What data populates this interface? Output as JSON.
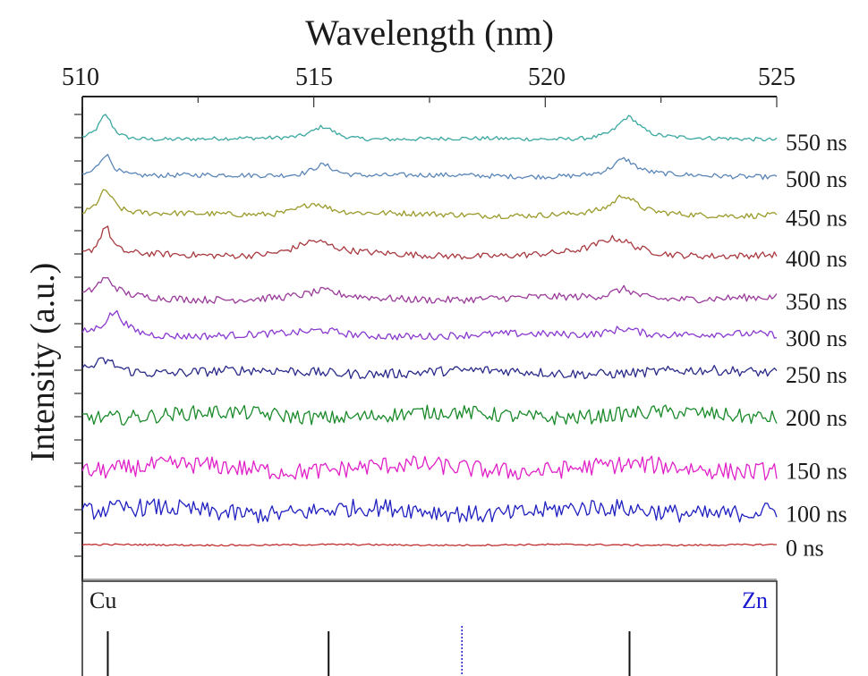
{
  "chart_data": {
    "type": "line",
    "title": "",
    "xlabel": "Wavelength (nm)",
    "ylabel": "Intensity (a.u.)",
    "xlim": [
      510,
      525
    ],
    "x_ticks": [
      "510",
      "515",
      "520",
      "525"
    ],
    "legend": "none (series labels at right end of each trace)",
    "grid": false,
    "stacked_offset": true,
    "series": [
      {
        "name": "550 ns",
        "color": "#3aa8a0",
        "base": 9.95,
        "noise": 0.05,
        "peaks": [
          [
            510.5,
            0.6,
            0.18
          ],
          [
            515.2,
            0.32,
            0.3
          ],
          [
            521.8,
            0.55,
            0.3
          ]
        ]
      },
      {
        "name": "500 ns",
        "color": "#5b86b8",
        "base": 9.05,
        "noise": 0.06,
        "peaks": [
          [
            510.5,
            0.55,
            0.18
          ],
          [
            515.2,
            0.3,
            0.3
          ],
          [
            521.7,
            0.4,
            0.3
          ]
        ]
      },
      {
        "name": "450 ns",
        "color": "#9a9a2a",
        "base": 8.1,
        "noise": 0.07,
        "peaks": [
          [
            510.5,
            0.6,
            0.2
          ],
          [
            515.0,
            0.3,
            0.4
          ],
          [
            521.7,
            0.45,
            0.3
          ]
        ]
      },
      {
        "name": "400 ns",
        "color": "#a83a40",
        "base": 7.1,
        "noise": 0.08,
        "peaks": [
          [
            510.5,
            0.7,
            0.15
          ],
          [
            515.0,
            0.35,
            0.5
          ],
          [
            521.5,
            0.4,
            0.5
          ]
        ]
      },
      {
        "name": "350 ns",
        "color": "#9a3a9a",
        "base": 6.05,
        "noise": 0.09,
        "peaks": [
          [
            510.5,
            0.45,
            0.25
          ],
          [
            515.2,
            0.15,
            0.4
          ],
          [
            521.7,
            0.25,
            0.3
          ]
        ]
      },
      {
        "name": "300 ns",
        "color": "#8a3ad0",
        "base": 5.15,
        "noise": 0.09,
        "peaks": [
          [
            510.7,
            0.55,
            0.25
          ],
          [
            515.2,
            0.1,
            0.4
          ],
          [
            521.7,
            0.2,
            0.4
          ]
        ]
      },
      {
        "name": "250 ns",
        "color": "#2a2a8a",
        "base": 4.25,
        "noise": 0.12,
        "peaks": [
          [
            510.5,
            0.3,
            0.3
          ]
        ]
      },
      {
        "name": "200 ns",
        "color": "#1a8a2a",
        "base": 3.2,
        "noise": 0.18,
        "peaks": []
      },
      {
        "name": "150 ns",
        "color": "#e020c8",
        "base": 1.9,
        "noise": 0.22,
        "peaks": []
      },
      {
        "name": "100 ns",
        "color": "#2020c0",
        "base": 0.85,
        "noise": 0.22,
        "peaks": []
      },
      {
        "name": "0 ns",
        "color": "#c03030",
        "base": 0.02,
        "noise": 0.02,
        "peaks": []
      }
    ],
    "reference_panel": {
      "left_label": "Cu",
      "right_label": "Zn",
      "left_color": "#111111",
      "right_color": "#1a1ad0",
      "cu_lines_nm": [
        510.55,
        515.32,
        521.82
      ],
      "zn_lines_nm": [
        518.2
      ]
    }
  }
}
